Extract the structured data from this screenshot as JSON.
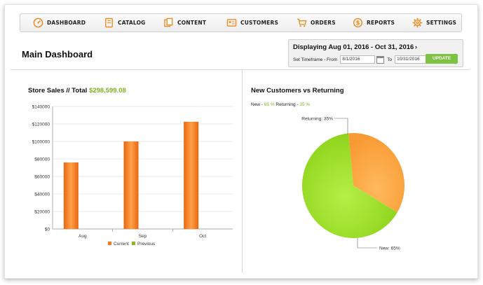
{
  "nav": {
    "items": [
      {
        "id": "dashboard",
        "label": "DASHBOARD",
        "icon": "speedometer-icon"
      },
      {
        "id": "catalog",
        "label": "CATALOG",
        "icon": "book-icon"
      },
      {
        "id": "content",
        "label": "CONTENT",
        "icon": "pages-icon"
      },
      {
        "id": "customers",
        "label": "CUSTOMERS",
        "icon": "id-card-icon"
      },
      {
        "id": "orders",
        "label": "ORDERS",
        "icon": "cart-icon"
      },
      {
        "id": "reports",
        "label": "REPORTS",
        "icon": "coin-icon"
      },
      {
        "id": "settings",
        "label": "SETTINGS",
        "icon": "gear-icon"
      }
    ]
  },
  "header": {
    "title": "Main Dashboard",
    "displaying": "Displaying Aug 01, 2016 - Oct 31, 2016",
    "timeframe_label": "Set Timeframe - From",
    "from_value": "8/1/2016",
    "to_label": "To",
    "to_value": "10/31/2016",
    "update_label": "UPDATE"
  },
  "sales": {
    "title": "Store Sales // Total",
    "total": "$298,599.08"
  },
  "customers": {
    "title": "New Customers vs Returning",
    "legend_new": "New - ",
    "legend_new_pct": "65 %",
    "legend_returning": " Returning - ",
    "legend_returning_pct": "35 %"
  },
  "colors": {
    "accent": "#f08a1e",
    "green": "#7cb51f",
    "update_button": "#7dc242"
  },
  "chart_data": [
    {
      "type": "bar",
      "title": "",
      "categories": [
        "Aug",
        "Sep",
        "Oct"
      ],
      "series": [
        {
          "name": "Current",
          "values": [
            76000,
            100000,
            122500
          ],
          "color": "#f47a20"
        },
        {
          "name": "Previous",
          "values": [
            0,
            0,
            0
          ],
          "color": "#8db71f"
        }
      ],
      "ylim": [
        0,
        140000
      ],
      "yticks": [
        0,
        20000,
        40000,
        60000,
        80000,
        100000,
        120000,
        140000
      ],
      "ytick_labels": [
        "$0",
        "$20000",
        "$40000",
        "$60000",
        "$80000",
        "$100000",
        "$120000",
        "$140000"
      ],
      "grid": true,
      "legend": "bottom"
    },
    {
      "type": "pie",
      "slices": [
        {
          "label": "New: 65%",
          "value": 65,
          "color": "#a6e23a"
        },
        {
          "label": "Returning: 35%",
          "value": 35,
          "color": "#ffad46"
        }
      ]
    }
  ]
}
